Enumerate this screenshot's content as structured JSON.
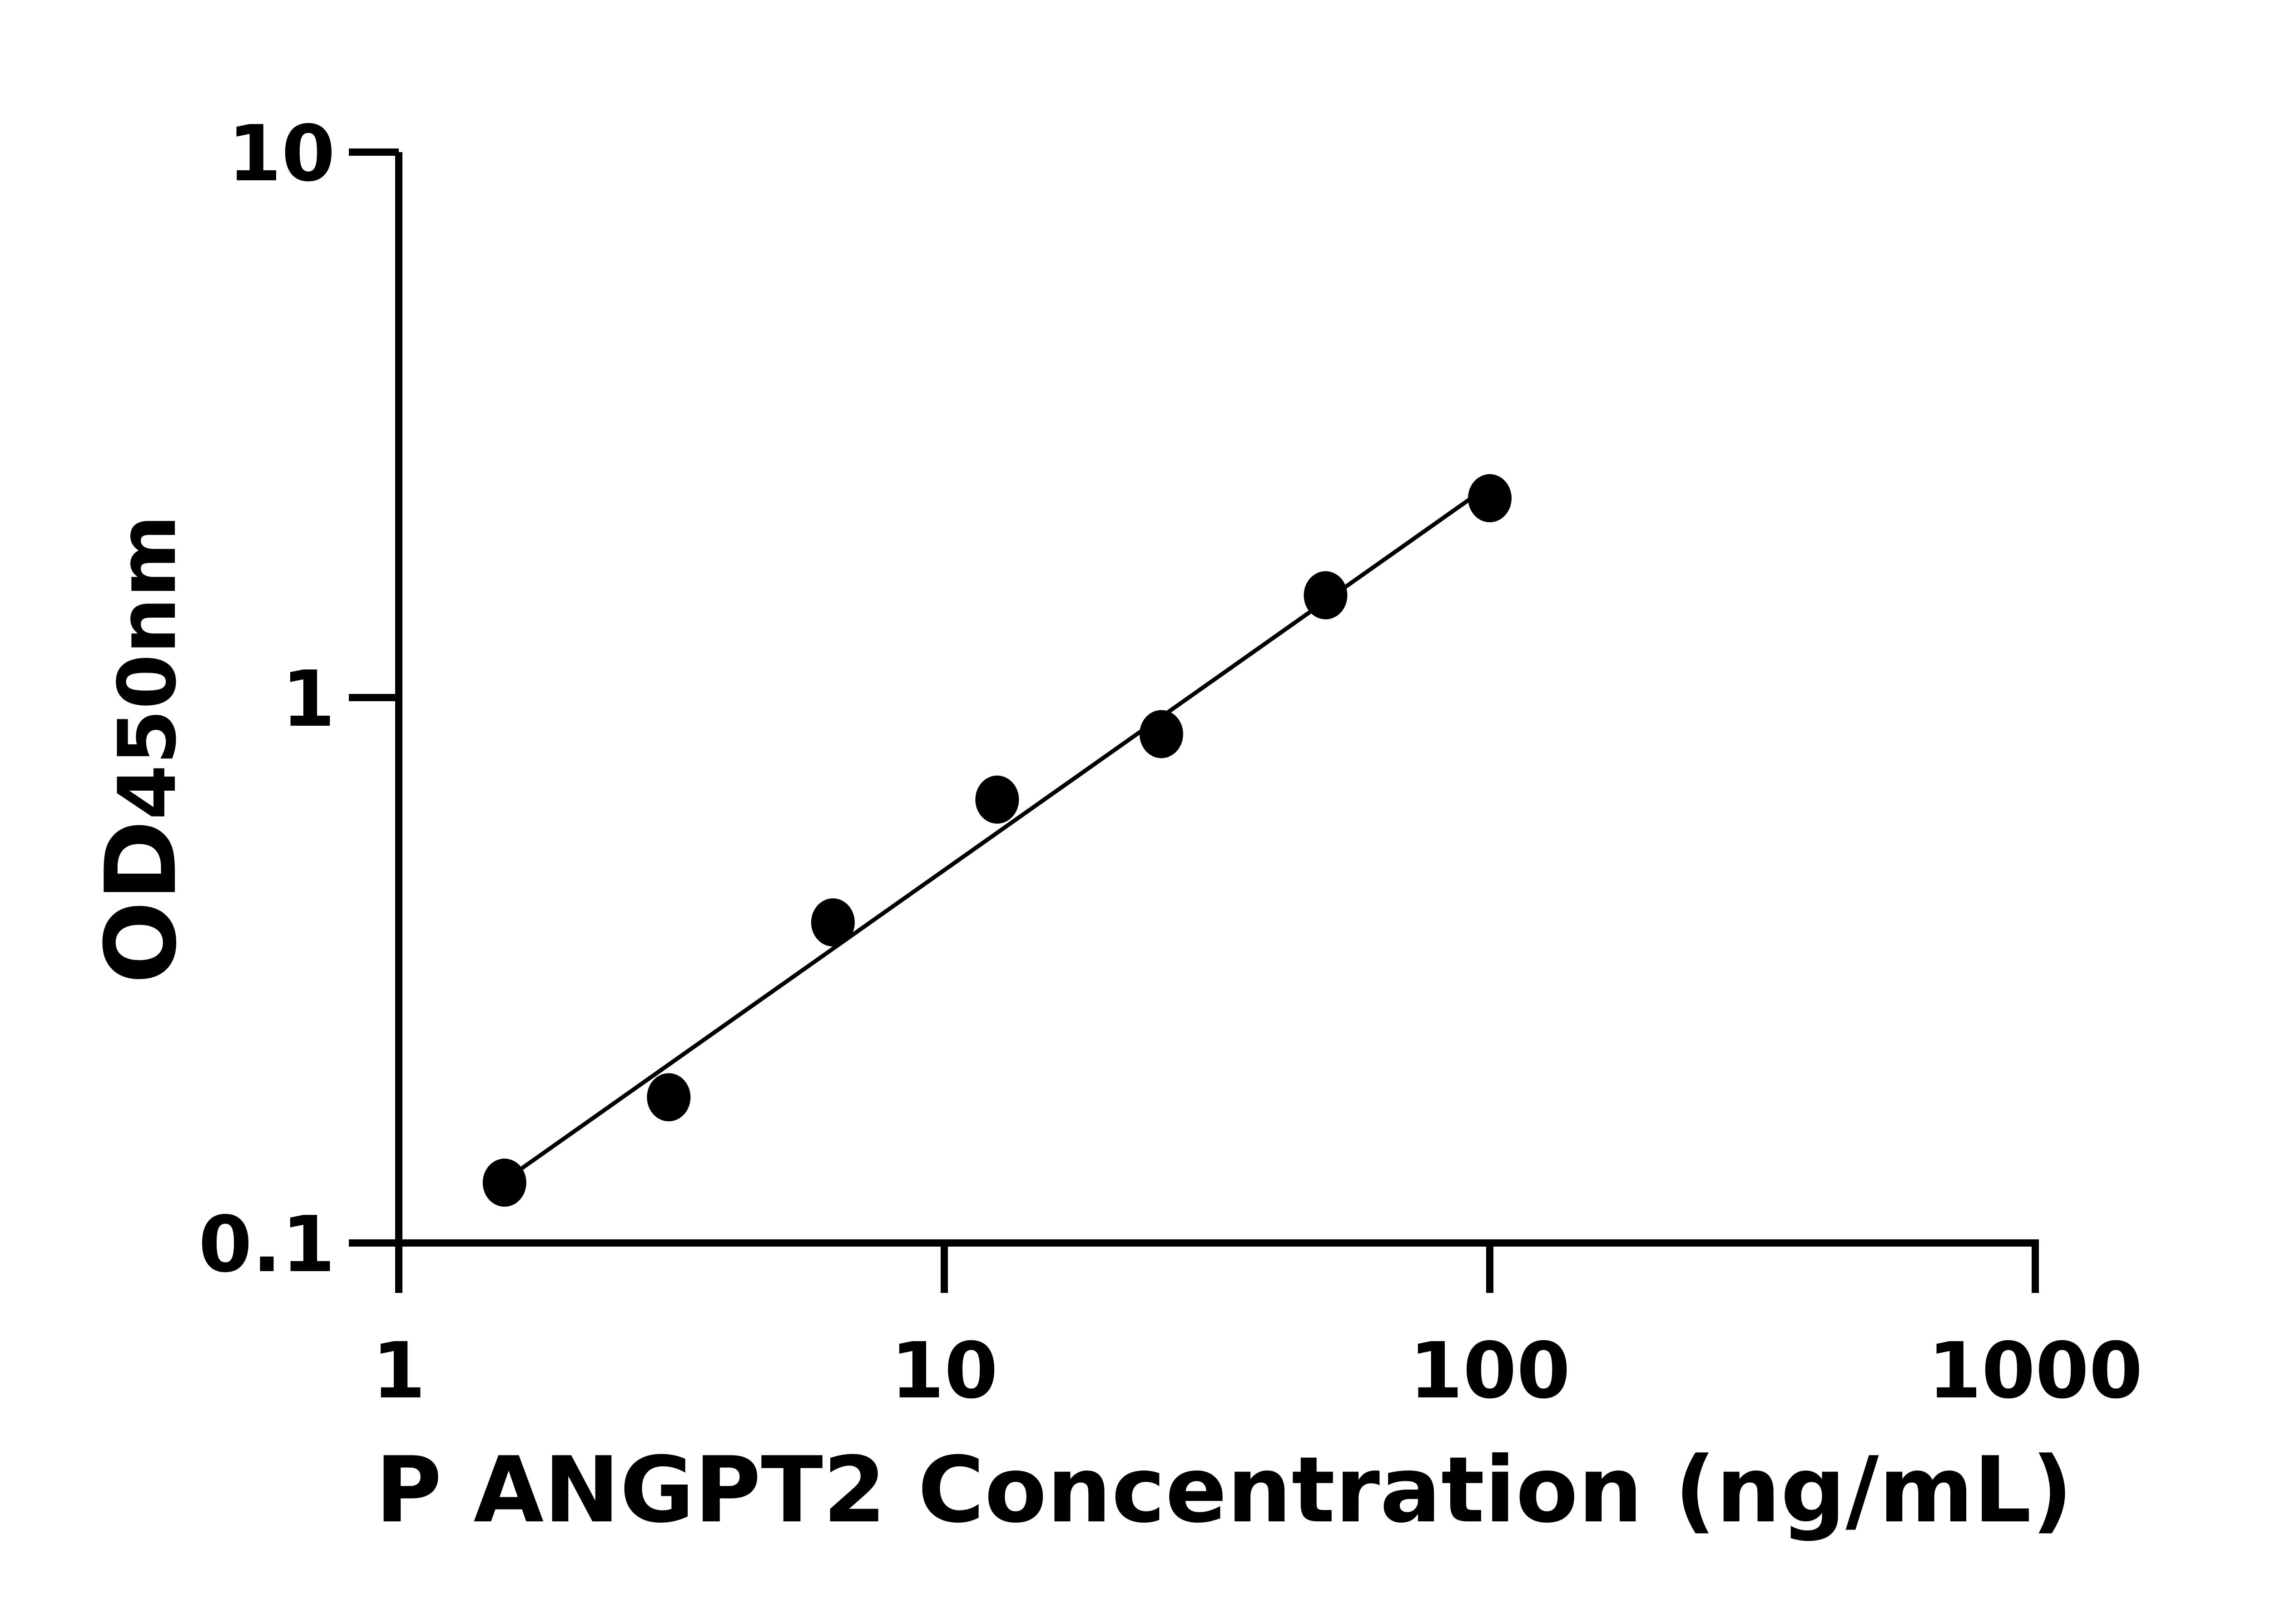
{
  "chart_data": {
    "type": "scatter",
    "xlabel": "P ANGPT2 Concentration (ng/mL)",
    "ylabel_main": "OD",
    "ylabel_sub": "450nm",
    "x_scale": "log",
    "y_scale": "log",
    "xlim": [
      1,
      1000
    ],
    "ylim": [
      0.1,
      10
    ],
    "x_ticks": [
      1,
      10,
      100,
      1000
    ],
    "x_tick_labels": [
      "1",
      "10",
      "100",
      "1000"
    ],
    "y_ticks": [
      0.1,
      1,
      10
    ],
    "y_tick_labels": [
      "0.1",
      "1",
      "10"
    ],
    "grid": false,
    "points": [
      {
        "x": 1.5625,
        "y": 0.129
      },
      {
        "x": 3.125,
        "y": 0.185
      },
      {
        "x": 6.25,
        "y": 0.387
      },
      {
        "x": 12.5,
        "y": 0.65
      },
      {
        "x": 25,
        "y": 0.857
      },
      {
        "x": 50,
        "y": 1.54
      },
      {
        "x": 100,
        "y": 2.32
      }
    ],
    "marker_color": "#000000"
  }
}
